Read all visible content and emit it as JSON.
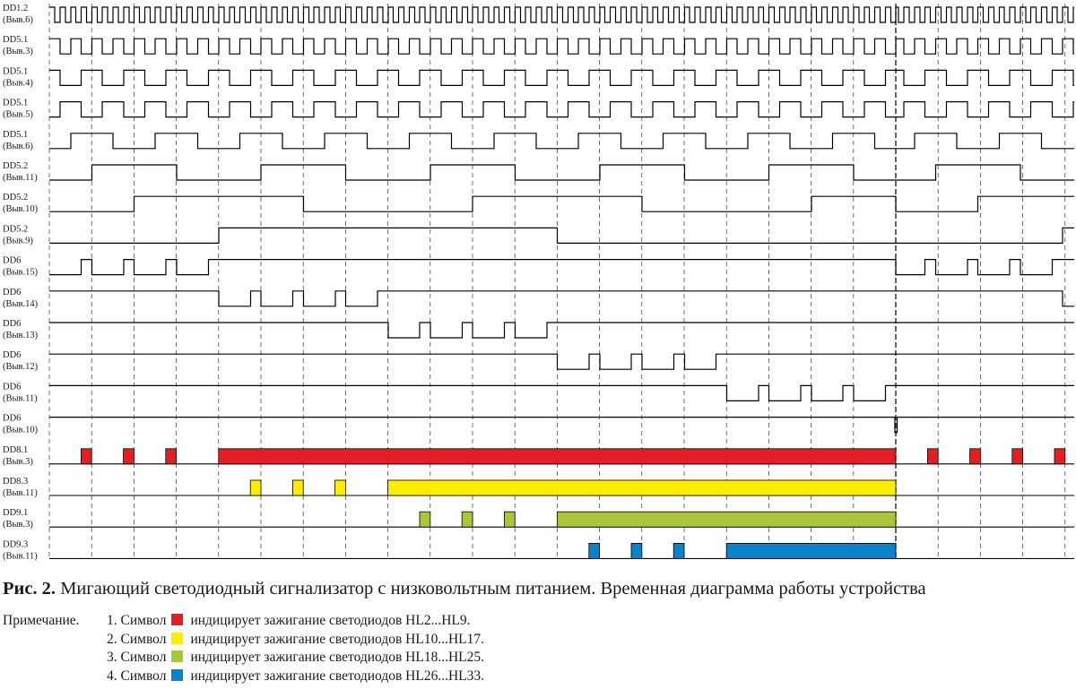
{
  "signals": [
    {
      "label1": "DD1.2",
      "label2": "(Выв.6)",
      "type": "clock1"
    },
    {
      "label1": "DD5.1",
      "label2": "(Выв.3)",
      "type": "clock2"
    },
    {
      "label1": "DD5.1",
      "label2": "(Выв.4)",
      "type": "clock4"
    },
    {
      "label1": "DD5.1",
      "label2": "(Выв.5)",
      "type": "div",
      "period": 4,
      "phase": 1
    },
    {
      "label1": "DD5.1",
      "label2": "(Выв.6)",
      "type": "div",
      "period": 8,
      "phase": 2
    },
    {
      "label1": "DD5.2",
      "label2": "(Выв.11)",
      "type": "div",
      "period": 16,
      "phase": 4
    },
    {
      "label1": "DD5.2",
      "label2": "(Выв.10)",
      "type": "div",
      "period": 32,
      "phase": 8
    },
    {
      "label1": "DD5.2",
      "label2": "(Выв.9)",
      "type": "div",
      "period": 64,
      "phase": 16
    },
    {
      "label1": "DD6",
      "label2": "(Выв.15)",
      "type": "decoder",
      "index": 0
    },
    {
      "label1": "DD6",
      "label2": "(Выв.14)",
      "type": "decoder",
      "index": 1
    },
    {
      "label1": "DD6",
      "label2": "(Выв.13)",
      "type": "decoder",
      "index": 2
    },
    {
      "label1": "DD6",
      "label2": "(Выв.12)",
      "type": "decoder",
      "index": 3
    },
    {
      "label1": "DD6",
      "label2": "(Выв.11)",
      "type": "decoder",
      "index": 4
    },
    {
      "label1": "DD6",
      "label2": "(Выв.10)",
      "type": "spike"
    },
    {
      "label1": "DD8.1",
      "label2": "(Выв.3)",
      "type": "led",
      "index": 0,
      "color": "#e31e24"
    },
    {
      "label1": "DD8.3",
      "label2": "(Выв.11)",
      "type": "led",
      "index": 1,
      "color": "#ffed00"
    },
    {
      "label1": "DD9.1",
      "label2": "(Выв.3)",
      "type": "led",
      "index": 2,
      "color": "#a8c83a"
    },
    {
      "label1": "DD9.3",
      "label2": "(Выв.11)",
      "type": "led",
      "index": 3,
      "color": "#0a83cc"
    }
  ],
  "caption": {
    "prefix": "Рис. 2.",
    "text": " Мигающий светодиодный сигнализатор с низковольтным питанием. Временная диаграмма работы устройства"
  },
  "note": {
    "heading": "Примечание.",
    "items": [
      {
        "number": "1.",
        "before": "Символ",
        "color": "#e31e24",
        "after": "индицирует зажигание светодиодов  HL2...HL9."
      },
      {
        "number": "2.",
        "before": "Символ",
        "color": "#ffed00",
        "after": "индицирует зажигание светодиодов  HL10...HL17."
      },
      {
        "number": "3.",
        "before": "Символ",
        "color": "#a8c83a",
        "after": "индицирует зажигание светодиодов  HL18...HL25."
      },
      {
        "number": "4.",
        "before": "Символ",
        "color": "#0a83cc",
        "after": "индицирует зажигание светодиодов  HL26...HL33."
      }
    ]
  }
}
